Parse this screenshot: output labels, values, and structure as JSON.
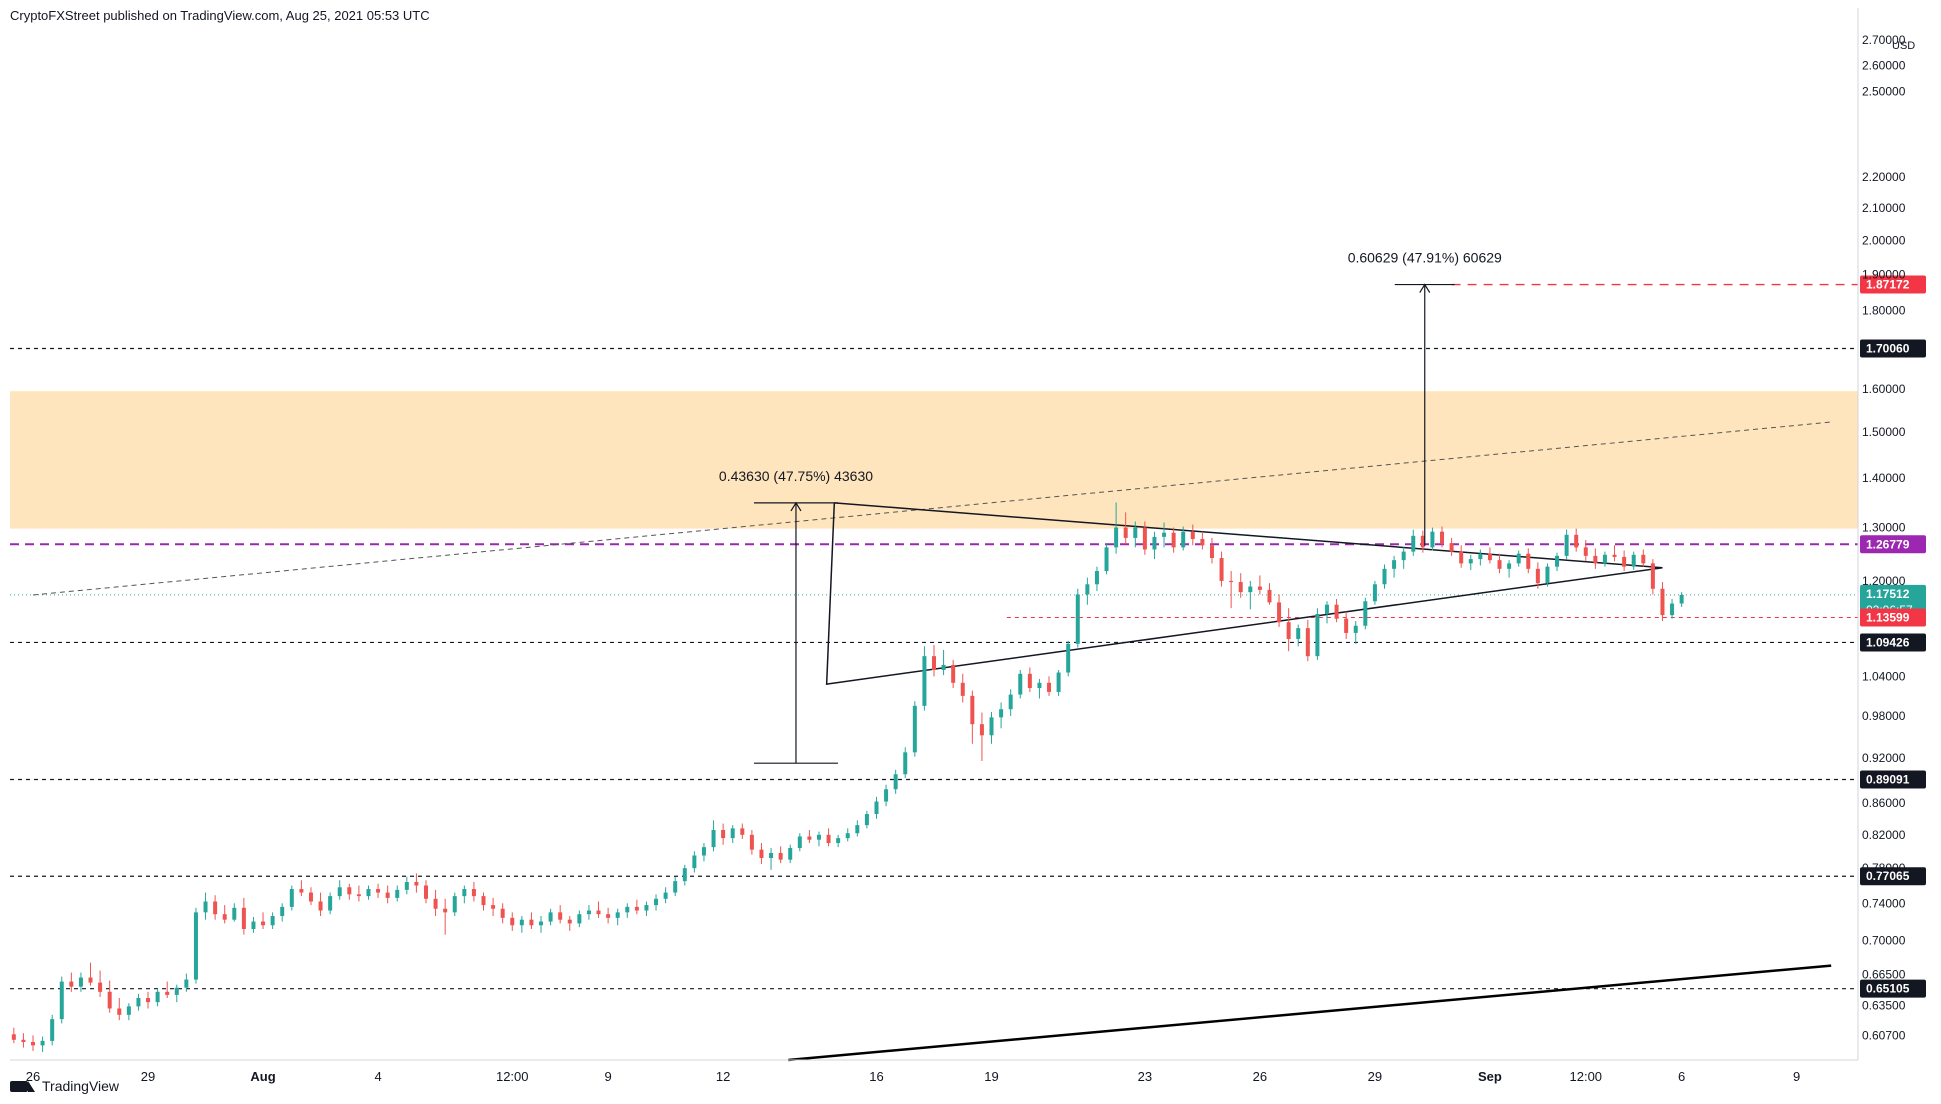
{
  "header": {
    "published_by": "CryptoFXStreet published on TradingView.com, Aug 25, 2021 05:53 UTC"
  },
  "footer": {
    "brand": "TradingView"
  },
  "colors": {
    "up": "#26a69a",
    "down": "#ef5350",
    "axis_text": "#131722",
    "zone_fill": "#ffe0b2",
    "purple": "#9c27b0",
    "red_level": "#f23645",
    "current_price": "#26a69a",
    "gridline": "#e0e3eb"
  },
  "chart_data": {
    "type": "candlestick",
    "currency": "USD",
    "y_axis": {
      "scale": "log",
      "ylim": [
        0.585,
        2.75
      ],
      "ticks": [
        "2.70000",
        "2.60000",
        "2.50000",
        "2.20000",
        "2.10000",
        "2.00000",
        "1.90000",
        "1.80000",
        "1.60000",
        "1.50000",
        "1.40000",
        "1.30000",
        "1.20000",
        "1.04000",
        "0.98000",
        "0.92000",
        "0.86000",
        "0.82000",
        "0.78000",
        "0.74000",
        "0.70000",
        "0.66500",
        "0.63500",
        "0.60700"
      ],
      "tick_values": [
        2.7,
        2.6,
        2.5,
        2.2,
        2.1,
        2.0,
        1.9,
        1.8,
        1.6,
        1.5,
        1.4,
        1.3,
        1.2,
        1.04,
        0.98,
        0.92,
        0.86,
        0.82,
        0.78,
        0.74,
        0.7,
        0.665,
        0.635,
        0.607
      ]
    },
    "x_axis": {
      "labels": [
        "26",
        "29",
        "Aug",
        "4",
        "12:00",
        "9",
        "12",
        "16",
        "19",
        "23",
        "26",
        "29",
        "Sep",
        "12:00",
        "6",
        "9"
      ],
      "label_times": [
        0,
        3,
        6,
        9,
        12.5,
        15,
        18,
        22,
        25,
        29,
        32,
        35,
        38,
        40.5,
        43,
        46
      ]
    },
    "horizontal_levels": [
      {
        "value": 1.87172,
        "label": "1.87172",
        "style": "red-dashed"
      },
      {
        "value": 1.7006,
        "label": "1.70060",
        "style": "black-dashed"
      },
      {
        "value": 1.26779,
        "label": "1.26779",
        "style": "purple-dashed"
      },
      {
        "value": 1.17512,
        "label": "1.17512",
        "sublabel": "02:06:57",
        "style": "current"
      },
      {
        "value": 1.13599,
        "label": "1.13599",
        "style": "red-dotted"
      },
      {
        "value": 1.09426,
        "label": "1.09426",
        "style": "black-dashed"
      },
      {
        "value": 0.89091,
        "label": "0.89091",
        "style": "black-dashed"
      },
      {
        "value": 0.77065,
        "label": "0.77065",
        "style": "black-dashed"
      },
      {
        "value": 0.65105,
        "label": "0.65105",
        "style": "black-dashed"
      }
    ],
    "supply_zone": {
      "from": 1.298,
      "to": 1.595
    },
    "measurements": [
      {
        "text": "0.43630 (47.75%) 43630",
        "from": 0.913,
        "to": 1.349,
        "time": 19.9
      },
      {
        "text": "0.60629 (47.91%) 60629",
        "from": 1.265,
        "to": 1.87172,
        "time": 36.3
      }
    ],
    "triangle": {
      "apex": [
        42.5,
        1.224
      ],
      "top": [
        20.9,
        1.349
      ],
      "bottom": [
        20.7,
        1.028
      ]
    },
    "trendlines": [
      {
        "from": [
          0,
          1.175
        ],
        "to": [
          46.9,
          1.523
        ],
        "style": "dashed-thin"
      },
      {
        "from": [
          19.7,
          0.585
        ],
        "to": [
          46.9,
          0.674
        ],
        "style": "solid-thick"
      }
    ],
    "candles": [
      [
        -0.5,
        0.608,
        0.614,
        0.6,
        0.603
      ],
      [
        -0.25,
        0.603,
        0.609,
        0.596,
        0.601
      ],
      [
        0.0,
        0.601,
        0.607,
        0.593,
        0.598
      ],
      [
        0.25,
        0.598,
        0.606,
        0.592,
        0.602
      ],
      [
        0.5,
        0.602,
        0.626,
        0.598,
        0.622
      ],
      [
        0.75,
        0.622,
        0.663,
        0.618,
        0.658
      ],
      [
        1.0,
        0.658,
        0.667,
        0.648,
        0.653
      ],
      [
        1.25,
        0.653,
        0.667,
        0.648,
        0.662
      ],
      [
        1.5,
        0.662,
        0.677,
        0.654,
        0.657
      ],
      [
        1.75,
        0.657,
        0.669,
        0.643,
        0.648
      ],
      [
        2.0,
        0.648,
        0.659,
        0.628,
        0.632
      ],
      [
        2.25,
        0.632,
        0.642,
        0.621,
        0.626
      ],
      [
        2.5,
        0.626,
        0.637,
        0.621,
        0.634
      ],
      [
        2.75,
        0.634,
        0.646,
        0.63,
        0.642
      ],
      [
        3.0,
        0.642,
        0.648,
        0.632,
        0.638
      ],
      [
        3.25,
        0.638,
        0.651,
        0.634,
        0.648
      ],
      [
        3.5,
        0.648,
        0.658,
        0.642,
        0.645
      ],
      [
        3.75,
        0.645,
        0.655,
        0.638,
        0.652
      ],
      [
        4.0,
        0.652,
        0.666,
        0.648,
        0.66
      ],
      [
        4.25,
        0.66,
        0.735,
        0.656,
        0.73
      ],
      [
        4.5,
        0.73,
        0.752,
        0.722,
        0.742
      ],
      [
        4.75,
        0.742,
        0.749,
        0.722,
        0.728
      ],
      [
        5.0,
        0.728,
        0.738,
        0.718,
        0.722
      ],
      [
        5.25,
        0.722,
        0.74,
        0.72,
        0.735
      ],
      [
        5.5,
        0.735,
        0.746,
        0.706,
        0.712
      ],
      [
        5.75,
        0.712,
        0.725,
        0.708,
        0.72
      ],
      [
        6.0,
        0.72,
        0.73,
        0.712,
        0.716
      ],
      [
        6.25,
        0.716,
        0.73,
        0.712,
        0.726
      ],
      [
        6.5,
        0.726,
        0.74,
        0.72,
        0.736
      ],
      [
        6.75,
        0.736,
        0.76,
        0.732,
        0.756
      ],
      [
        7.0,
        0.756,
        0.766,
        0.748,
        0.752
      ],
      [
        7.25,
        0.752,
        0.758,
        0.738,
        0.742
      ],
      [
        7.5,
        0.742,
        0.752,
        0.726,
        0.732
      ],
      [
        7.75,
        0.732,
        0.752,
        0.728,
        0.748
      ],
      [
        8.0,
        0.748,
        0.766,
        0.744,
        0.758
      ],
      [
        8.25,
        0.758,
        0.762,
        0.744,
        0.75
      ],
      [
        8.5,
        0.75,
        0.76,
        0.742,
        0.748
      ],
      [
        8.75,
        0.748,
        0.76,
        0.744,
        0.756
      ],
      [
        9.0,
        0.756,
        0.762,
        0.746,
        0.752
      ],
      [
        9.25,
        0.752,
        0.76,
        0.74,
        0.746
      ],
      [
        9.5,
        0.746,
        0.76,
        0.742,
        0.755
      ],
      [
        9.75,
        0.755,
        0.77,
        0.75,
        0.764
      ],
      [
        10.0,
        0.764,
        0.774,
        0.752,
        0.76
      ],
      [
        10.25,
        0.76,
        0.766,
        0.74,
        0.745
      ],
      [
        10.5,
        0.745,
        0.755,
        0.726,
        0.734
      ],
      [
        10.75,
        0.734,
        0.745,
        0.706,
        0.73
      ],
      [
        11.0,
        0.73,
        0.752,
        0.726,
        0.748
      ],
      [
        11.25,
        0.748,
        0.76,
        0.74,
        0.756
      ],
      [
        11.5,
        0.756,
        0.764,
        0.742,
        0.748
      ],
      [
        11.75,
        0.748,
        0.752,
        0.732,
        0.738
      ],
      [
        12.0,
        0.738,
        0.746,
        0.726,
        0.734
      ],
      [
        12.25,
        0.734,
        0.74,
        0.718,
        0.724
      ],
      [
        12.5,
        0.724,
        0.73,
        0.71,
        0.716
      ],
      [
        12.75,
        0.716,
        0.726,
        0.708,
        0.722
      ],
      [
        13.0,
        0.722,
        0.73,
        0.712,
        0.716
      ],
      [
        13.25,
        0.716,
        0.726,
        0.708,
        0.72
      ],
      [
        13.5,
        0.72,
        0.734,
        0.716,
        0.73
      ],
      [
        13.75,
        0.73,
        0.738,
        0.718,
        0.722
      ],
      [
        14.0,
        0.722,
        0.726,
        0.71,
        0.718
      ],
      [
        14.25,
        0.718,
        0.732,
        0.714,
        0.728
      ],
      [
        14.5,
        0.728,
        0.738,
        0.722,
        0.732
      ],
      [
        14.75,
        0.732,
        0.742,
        0.724,
        0.728
      ],
      [
        15.0,
        0.728,
        0.735,
        0.718,
        0.724
      ],
      [
        15.25,
        0.724,
        0.734,
        0.716,
        0.73
      ],
      [
        15.5,
        0.73,
        0.74,
        0.724,
        0.736
      ],
      [
        15.75,
        0.736,
        0.744,
        0.728,
        0.732
      ],
      [
        16.0,
        0.732,
        0.742,
        0.726,
        0.738
      ],
      [
        16.25,
        0.738,
        0.75,
        0.732,
        0.745
      ],
      [
        16.5,
        0.745,
        0.758,
        0.74,
        0.752
      ],
      [
        16.75,
        0.752,
        0.77,
        0.748,
        0.765
      ],
      [
        17.0,
        0.765,
        0.784,
        0.76,
        0.78
      ],
      [
        17.25,
        0.78,
        0.8,
        0.775,
        0.795
      ],
      [
        17.5,
        0.795,
        0.81,
        0.788,
        0.805
      ],
      [
        17.75,
        0.805,
        0.838,
        0.8,
        0.826
      ],
      [
        18.0,
        0.826,
        0.834,
        0.808,
        0.816
      ],
      [
        18.25,
        0.816,
        0.832,
        0.81,
        0.828
      ],
      [
        18.5,
        0.828,
        0.834,
        0.815,
        0.82
      ],
      [
        18.75,
        0.82,
        0.826,
        0.796,
        0.802
      ],
      [
        19.0,
        0.802,
        0.81,
        0.785,
        0.792
      ],
      [
        19.25,
        0.792,
        0.804,
        0.778,
        0.798
      ],
      [
        19.5,
        0.798,
        0.806,
        0.786,
        0.79
      ],
      [
        19.75,
        0.79,
        0.808,
        0.786,
        0.804
      ],
      [
        20.0,
        0.804,
        0.822,
        0.8,
        0.818
      ],
      [
        20.25,
        0.818,
        0.826,
        0.81,
        0.814
      ],
      [
        20.5,
        0.814,
        0.824,
        0.806,
        0.82
      ],
      [
        20.75,
        0.82,
        0.828,
        0.806,
        0.81
      ],
      [
        21.0,
        0.81,
        0.82,
        0.805,
        0.816
      ],
      [
        21.25,
        0.816,
        0.828,
        0.812,
        0.822
      ],
      [
        21.5,
        0.822,
        0.838,
        0.818,
        0.832
      ],
      [
        21.75,
        0.832,
        0.85,
        0.828,
        0.846
      ],
      [
        22.0,
        0.846,
        0.868,
        0.84,
        0.862
      ],
      [
        22.25,
        0.862,
        0.884,
        0.856,
        0.878
      ],
      [
        22.5,
        0.878,
        0.904,
        0.872,
        0.898
      ],
      [
        22.75,
        0.898,
        0.935,
        0.893,
        0.928
      ],
      [
        23.0,
        0.928,
        1.002,
        0.922,
        0.995
      ],
      [
        23.25,
        0.995,
        1.088,
        0.988,
        1.072
      ],
      [
        23.5,
        1.072,
        1.09,
        1.04,
        1.05
      ],
      [
        23.75,
        1.05,
        1.082,
        1.042,
        1.058
      ],
      [
        24.0,
        1.058,
        1.066,
        1.022,
        1.03
      ],
      [
        24.25,
        1.03,
        1.044,
        1.0,
        1.01
      ],
      [
        24.5,
        1.01,
        1.018,
        0.94,
        0.968
      ],
      [
        24.75,
        0.968,
        0.985,
        0.916,
        0.952
      ],
      [
        25.0,
        0.952,
        0.986,
        0.94,
        0.978
      ],
      [
        25.25,
        0.978,
        1.0,
        0.962,
        0.99
      ],
      [
        25.5,
        0.99,
        1.02,
        0.98,
        1.012
      ],
      [
        25.75,
        1.012,
        1.05,
        1.006,
        1.044
      ],
      [
        26.0,
        1.044,
        1.054,
        1.016,
        1.022
      ],
      [
        26.25,
        1.022,
        1.036,
        1.006,
        1.03
      ],
      [
        26.5,
        1.03,
        1.04,
        1.01,
        1.016
      ],
      [
        26.75,
        1.016,
        1.05,
        1.01,
        1.046
      ],
      [
        27.0,
        1.046,
        1.097,
        1.04,
        1.092
      ],
      [
        27.25,
        1.092,
        1.186,
        1.086,
        1.176
      ],
      [
        27.5,
        1.176,
        1.206,
        1.158,
        1.194
      ],
      [
        27.75,
        1.194,
        1.226,
        1.182,
        1.218
      ],
      [
        28.0,
        1.218,
        1.27,
        1.212,
        1.262
      ],
      [
        28.25,
        1.262,
        1.35,
        1.25,
        1.3
      ],
      [
        28.5,
        1.3,
        1.33,
        1.268,
        1.28
      ],
      [
        28.75,
        1.28,
        1.312,
        1.262,
        1.3
      ],
      [
        29.0,
        1.3,
        1.312,
        1.248,
        1.258
      ],
      [
        29.25,
        1.258,
        1.292,
        1.24,
        1.282
      ],
      [
        29.5,
        1.282,
        1.31,
        1.262,
        1.29
      ],
      [
        29.75,
        1.29,
        1.3,
        1.252,
        1.262
      ],
      [
        30.0,
        1.262,
        1.302,
        1.256,
        1.292
      ],
      [
        30.25,
        1.292,
        1.306,
        1.266,
        1.278
      ],
      [
        30.5,
        1.278,
        1.292,
        1.258,
        1.266
      ],
      [
        30.75,
        1.266,
        1.28,
        1.232,
        1.242
      ],
      [
        31.0,
        1.242,
        1.254,
        1.19,
        1.2
      ],
      [
        31.25,
        1.2,
        1.218,
        1.152,
        1.198
      ],
      [
        31.5,
        1.198,
        1.214,
        1.17,
        1.18
      ],
      [
        31.75,
        1.18,
        1.2,
        1.15,
        1.19
      ],
      [
        32.0,
        1.19,
        1.21,
        1.176,
        1.184
      ],
      [
        32.25,
        1.184,
        1.196,
        1.158,
        1.162
      ],
      [
        32.5,
        1.162,
        1.176,
        1.12,
        1.128
      ],
      [
        32.75,
        1.128,
        1.152,
        1.08,
        1.1
      ],
      [
        33.0,
        1.1,
        1.124,
        1.088,
        1.118
      ],
      [
        33.25,
        1.118,
        1.132,
        1.064,
        1.072
      ],
      [
        33.5,
        1.072,
        1.152,
        1.066,
        1.142
      ],
      [
        33.75,
        1.142,
        1.164,
        1.126,
        1.158
      ],
      [
        34.0,
        1.158,
        1.168,
        1.128,
        1.134
      ],
      [
        34.25,
        1.134,
        1.146,
        1.1,
        1.11
      ],
      [
        34.5,
        1.11,
        1.13,
        1.092,
        1.122
      ],
      [
        34.75,
        1.122,
        1.17,
        1.116,
        1.164
      ],
      [
        35.0,
        1.164,
        1.2,
        1.158,
        1.194
      ],
      [
        35.25,
        1.194,
        1.23,
        1.186,
        1.222
      ],
      [
        35.5,
        1.222,
        1.246,
        1.206,
        1.238
      ],
      [
        35.75,
        1.238,
        1.262,
        1.222,
        1.254
      ],
      [
        36.0,
        1.254,
        1.296,
        1.246,
        1.284
      ],
      [
        36.25,
        1.284,
        1.294,
        1.252,
        1.262
      ],
      [
        36.5,
        1.262,
        1.3,
        1.256,
        1.292
      ],
      [
        36.75,
        1.292,
        1.302,
        1.262,
        1.27
      ],
      [
        37.0,
        1.27,
        1.28,
        1.246,
        1.254
      ],
      [
        37.25,
        1.254,
        1.266,
        1.224,
        1.232
      ],
      [
        37.5,
        1.232,
        1.248,
        1.22,
        1.24
      ],
      [
        37.75,
        1.24,
        1.258,
        1.228,
        1.25
      ],
      [
        38.0,
        1.25,
        1.262,
        1.232,
        1.238
      ],
      [
        38.25,
        1.238,
        1.25,
        1.214,
        1.222
      ],
      [
        38.5,
        1.222,
        1.238,
        1.206,
        1.232
      ],
      [
        38.75,
        1.232,
        1.256,
        1.226,
        1.25
      ],
      [
        39.0,
        1.25,
        1.26,
        1.214,
        1.222
      ],
      [
        39.25,
        1.222,
        1.234,
        1.186,
        1.196
      ],
      [
        39.5,
        1.196,
        1.232,
        1.19,
        1.226
      ],
      [
        39.75,
        1.226,
        1.252,
        1.218,
        1.246
      ],
      [
        40.0,
        1.246,
        1.296,
        1.24,
        1.286
      ],
      [
        40.25,
        1.286,
        1.298,
        1.254,
        1.262
      ],
      [
        40.5,
        1.262,
        1.276,
        1.236,
        1.246
      ],
      [
        40.75,
        1.246,
        1.26,
        1.222,
        1.232
      ],
      [
        41.0,
        1.232,
        1.254,
        1.226,
        1.248
      ],
      [
        41.25,
        1.248,
        1.266,
        1.236,
        1.244
      ],
      [
        41.5,
        1.244,
        1.256,
        1.218,
        1.226
      ],
      [
        41.75,
        1.226,
        1.254,
        1.22,
        1.248
      ],
      [
        42.0,
        1.248,
        1.258,
        1.226,
        1.232
      ],
      [
        42.25,
        1.232,
        1.24,
        1.176,
        1.186
      ],
      [
        42.5,
        1.186,
        1.198,
        1.13,
        1.14
      ],
      [
        42.75,
        1.14,
        1.168,
        1.134,
        1.16
      ],
      [
        43.0,
        1.16,
        1.18,
        1.154,
        1.175
      ]
    ]
  }
}
